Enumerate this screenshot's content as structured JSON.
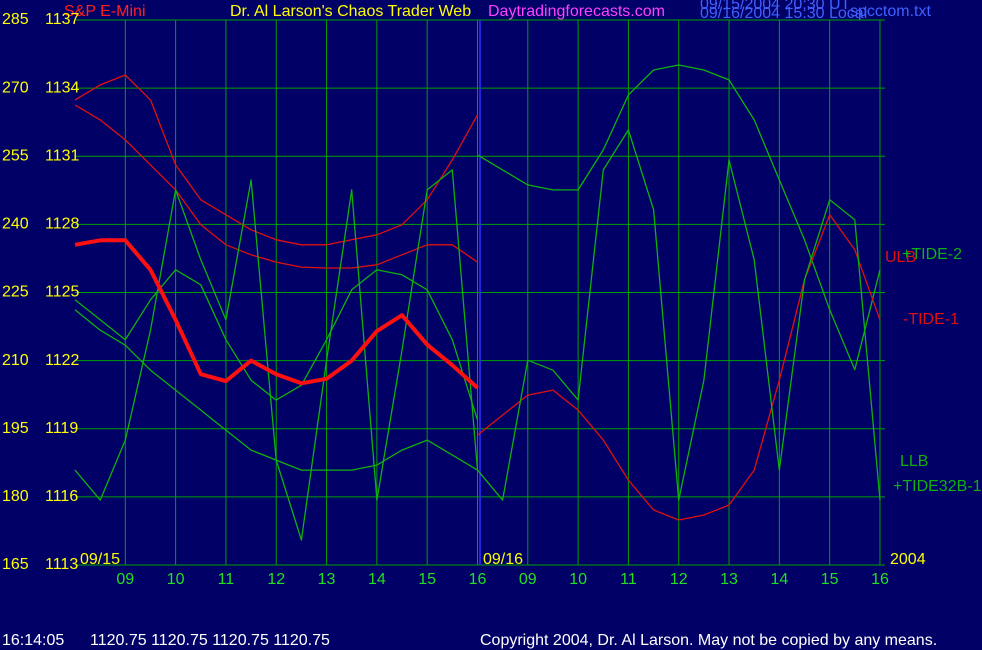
{
  "header": {
    "symbol": "S&P E-Mini",
    "title": "Dr. Al Larson's Chaos Trader Web",
    "site": "Daytradingforecasts.com",
    "time_ut": "09/15/2004 20:30 UT",
    "time_local": "09/16/2004 15:30 Local",
    "file": "spcctom.txt"
  },
  "chart_data": {
    "type": "line",
    "date_labels": [
      "09/15",
      "09/16",
      "2004"
    ],
    "x": [
      8,
      8.5,
      9,
      9.5,
      10,
      10.5,
      11,
      11.5,
      12,
      12.5,
      13,
      13.5,
      14,
      14.5,
      15,
      15.5,
      16,
      16.5,
      17,
      17.5,
      18,
      18.5,
      19,
      19.5,
      20,
      20.5,
      21,
      21.5,
      22,
      22.5,
      23,
      23.5,
      24
    ],
    "xlim": [
      8,
      24.1
    ],
    "xticks": [
      {
        "value": 9,
        "label": "09"
      },
      10,
      11,
      12,
      13,
      14,
      15,
      16,
      {
        "value": 17,
        "label": "09"
      },
      {
        "value": 18,
        "label": "10"
      },
      {
        "value": 19,
        "label": "11"
      },
      {
        "value": 20,
        "label": "12"
      },
      {
        "value": 21,
        "label": "13"
      },
      {
        "value": 22,
        "label": "14"
      },
      {
        "value": 23,
        "label": "15"
      },
      {
        "value": 24,
        "label": "16"
      }
    ],
    "ylim": [
      165,
      285
    ],
    "yticks": [
      165,
      180,
      195,
      210,
      225,
      240,
      255,
      270,
      285
    ],
    "y2lim": [
      1113,
      1137
    ],
    "y2ticks": [
      1113,
      1116,
      1119,
      1122,
      1125,
      1128,
      1131,
      1134,
      1137
    ],
    "grid": true,
    "series": [
      {
        "name": "ULB",
        "color": "#e01010",
        "values": [
          267.4,
          270.7,
          272.9,
          267.4,
          253.1,
          245.4,
          242.1,
          238.8,
          236.6,
          235.5,
          235.5,
          236.6,
          237.7,
          239.9,
          245.4,
          254.2,
          264.1,
          null,
          null,
          null,
          null,
          null,
          null,
          null,
          null,
          null,
          null,
          null,
          null,
          null,
          null,
          null,
          null
        ]
      },
      {
        "color": "#e01010",
        "values": [
          266.3,
          263.0,
          258.6,
          253.1,
          247.6,
          239.9,
          235.5,
          233.3,
          231.7,
          230.6,
          230.4,
          230.4,
          231.1,
          233.3,
          235.5,
          235.5,
          231.7,
          null,
          null,
          null,
          null,
          null,
          null,
          null,
          null,
          null,
          null,
          null,
          null,
          null,
          null,
          null,
          null
        ]
      },
      {
        "name": "LLB",
        "color": "#10b010",
        "values": [
          221.2,
          216.7,
          213.4,
          207.9,
          203.5,
          199.1,
          194.7,
          190.3,
          188.1,
          185.9,
          185.9,
          185.9,
          187.0,
          190.3,
          192.5,
          189.2,
          185.9,
          null,
          null,
          null,
          null,
          null,
          null,
          null,
          null,
          null,
          null,
          null,
          null,
          null,
          null,
          null,
          null
        ]
      },
      {
        "color": "#10b010",
        "values": [
          223.4,
          219.0,
          214.6,
          223.4,
          230.0,
          226.7,
          214.6,
          205.7,
          201.3,
          204.6,
          214.6,
          225.6,
          230.0,
          228.9,
          225.6,
          214.6,
          196.9,
          null,
          null,
          null,
          null,
          null,
          null,
          null,
          null,
          null,
          null,
          null,
          null,
          null,
          null,
          null,
          null
        ]
      },
      {
        "name": "+TIDE-2",
        "color": "#10b010",
        "values": [
          null,
          null,
          null,
          null,
          null,
          null,
          null,
          null,
          null,
          null,
          null,
          null,
          null,
          null,
          null,
          null,
          255.3,
          252.0,
          248.7,
          247.6,
          247.6,
          256.4,
          268.5,
          274.0,
          275.1,
          274.0,
          271.8,
          263.0,
          249.8,
          236.6,
          221.2,
          208.0,
          230.0
        ]
      },
      {
        "name": "-TIDE-1",
        "color": "#e01010",
        "values": [
          null,
          null,
          null,
          null,
          null,
          null,
          null,
          null,
          null,
          null,
          null,
          null,
          null,
          null,
          null,
          null,
          193.6,
          198.0,
          202.4,
          203.5,
          199.1,
          192.5,
          183.7,
          177.1,
          174.9,
          176.0,
          178.2,
          185.9,
          205.7,
          227.8,
          242.1,
          234.4,
          219.0
        ]
      },
      {
        "name": "+TIDE32B-1",
        "color": "#10b010",
        "values": [
          185.9,
          179.3,
          192.5,
          216.7,
          247.6,
          232.2,
          219.0,
          249.8,
          188.1,
          170.5,
          210.1,
          247.6,
          179.3,
          212.3,
          247.6,
          252.0,
          185.9,
          179.3,
          210.1,
          207.9,
          201.3,
          252.0,
          260.8,
          243.2,
          179.3,
          205.7,
          254.2,
          232.2,
          185.9,
          227.8,
          245.4,
          241.0,
          179.3
        ]
      },
      {
        "color": "#ff1010",
        "axis": "y2",
        "values": [
          1127.1,
          1127.3,
          1127.3,
          1126.0,
          1123.8,
          1121.4,
          1121.1,
          1122.0,
          1121.4,
          1121.0,
          1121.2,
          1122.0,
          1123.3,
          1124.0,
          1122.7,
          1121.8,
          1120.8,
          null,
          null,
          null,
          null,
          null,
          null,
          null,
          null,
          null,
          null,
          null,
          null,
          null,
          null,
          null,
          null
        ]
      }
    ]
  },
  "footer": {
    "clock": "16:14:05",
    "quotes": "1120.75 1120.75 1120.75 1120.75",
    "copyright": "Copyright 2004, Dr. Al Larson. May not be copied by any means."
  }
}
